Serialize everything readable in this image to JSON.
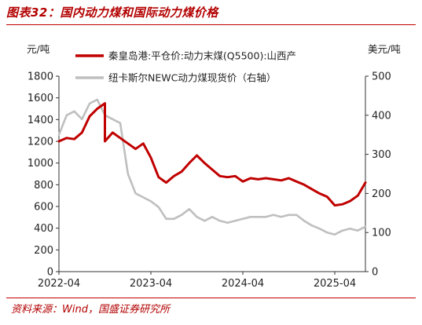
{
  "figure": {
    "title": "图表32：国内动力煤和国际动力煤价格",
    "source": "资料来源：Wind，国盛证券研究所"
  },
  "chart_data": {
    "type": "line",
    "left_unit": "元/吨",
    "right_unit": "美元/吨",
    "x_ticks": [
      "2022-04",
      "2023-04",
      "2024-04",
      "2025-04"
    ],
    "y_left_ticks": [
      0,
      200,
      400,
      600,
      800,
      1000,
      1200,
      1400,
      1600,
      1800
    ],
    "y_right_ticks": [
      0,
      100,
      200,
      300,
      400,
      500
    ],
    "ylim_left": [
      0,
      1800
    ],
    "ylim_right": [
      0,
      500
    ],
    "xlim": [
      "2022-04",
      "2025-08"
    ],
    "grid": false,
    "legend_position": "top",
    "colors": {
      "domestic": "#c00000",
      "international": "#bfbfbf"
    },
    "series": [
      {
        "name": "秦皇岛港:平仓价:动力末煤(Q5500):山西产",
        "axis": "left",
        "x": [
          "2022-04",
          "2022-05",
          "2022-06",
          "2022-07",
          "2022-08",
          "2022-09",
          "2022-10",
          "2022-10",
          "2022-11",
          "2022-12",
          "2023-01",
          "2023-02",
          "2023-03",
          "2023-04",
          "2023-05",
          "2023-06",
          "2023-07",
          "2023-08",
          "2023-09",
          "2023-10",
          "2023-11",
          "2023-12",
          "2024-01",
          "2024-02",
          "2024-03",
          "2024-04",
          "2024-05",
          "2024-06",
          "2024-07",
          "2024-08",
          "2024-09",
          "2024-10",
          "2024-11",
          "2024-12",
          "2025-01",
          "2025-02",
          "2025-03",
          "2025-04",
          "2025-05",
          "2025-06",
          "2025-07",
          "2025-08"
        ],
        "y": [
          1200,
          1230,
          1220,
          1280,
          1430,
          1500,
          1550,
          1200,
          1280,
          1230,
          1180,
          1130,
          1180,
          1050,
          870,
          820,
          880,
          920,
          1000,
          1070,
          1000,
          940,
          880,
          870,
          880,
          830,
          860,
          850,
          860,
          850,
          840,
          860,
          830,
          800,
          760,
          720,
          690,
          610,
          620,
          650,
          700,
          820
        ]
      },
      {
        "name": "纽卡斯尔NEWC动力煤现货价（右轴）",
        "axis": "right",
        "x": [
          "2022-04",
          "2022-05",
          "2022-06",
          "2022-07",
          "2022-08",
          "2022-09",
          "2022-10",
          "2022-11",
          "2022-12",
          "2023-01",
          "2023-02",
          "2023-03",
          "2023-04",
          "2023-05",
          "2023-06",
          "2023-07",
          "2023-08",
          "2023-09",
          "2023-10",
          "2023-11",
          "2023-12",
          "2024-01",
          "2024-02",
          "2024-03",
          "2024-04",
          "2024-05",
          "2024-06",
          "2024-07",
          "2024-08",
          "2024-09",
          "2024-10",
          "2024-11",
          "2024-12",
          "2025-01",
          "2025-02",
          "2025-03",
          "2025-04",
          "2025-05",
          "2025-06",
          "2025-07",
          "2025-08"
        ],
        "y": [
          350,
          400,
          410,
          390,
          430,
          440,
          400,
          390,
          380,
          250,
          200,
          190,
          180,
          165,
          135,
          135,
          145,
          160,
          140,
          130,
          140,
          130,
          125,
          130,
          135,
          140,
          140,
          140,
          145,
          140,
          145,
          145,
          130,
          118,
          110,
          100,
          95,
          105,
          110,
          105,
          115
        ]
      }
    ]
  }
}
